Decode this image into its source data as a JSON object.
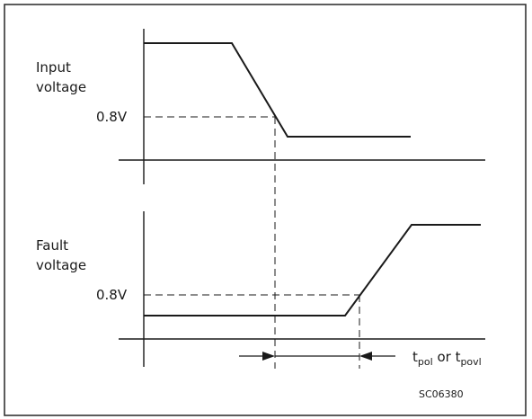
{
  "top_panel": {
    "label_line1": "Input",
    "label_line2": "voltage",
    "threshold_label": "0.8V"
  },
  "bottom_panel": {
    "label_line1": "Fault",
    "label_line2": "voltage",
    "threshold_label": "0.8V"
  },
  "timing": {
    "t1_base": "t",
    "t1_sub": "pol",
    "connector": " or ",
    "t2_base": "t",
    "t2_sub": "povl"
  },
  "figure_code": "SC06380",
  "colors": {
    "line": "#1a1a1a",
    "frame": "#333333",
    "background": "#ffffff"
  }
}
